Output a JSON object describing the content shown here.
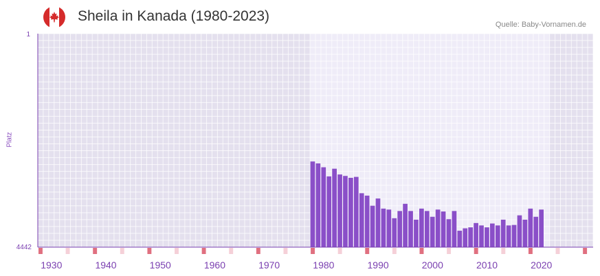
{
  "header": {
    "title": "Sheila in Kanada (1980-2023)",
    "source": "Quelle: Baby-Vornamen.de",
    "flag": "canada-flag-icon"
  },
  "colors": {
    "bar": "#8a4fc8",
    "axis_text": "#7a3fb0",
    "decade_marker": "#e07080",
    "halfdecade_marker": "#f5d0d8",
    "bg_inactive": "#e4e0ee",
    "bg_active": "#efecf8"
  },
  "chart_data": {
    "type": "bar",
    "title": "Sheila in Kanada (1980-2023)",
    "xlabel": "",
    "ylabel": "Platz",
    "y_inverted": true,
    "ylim": [
      1,
      4442
    ],
    "ytick_labels": [
      "1",
      "4442"
    ],
    "xlim": [
      1928,
      2029
    ],
    "xtick_labels": [
      "1930",
      "1940",
      "1950",
      "1960",
      "1970",
      "1980",
      "1990",
      "2000",
      "2010",
      "2020"
    ],
    "active_range": [
      1978,
      2021
    ],
    "categories": [
      1978,
      1979,
      1980,
      1981,
      1982,
      1983,
      1984,
      1985,
      1986,
      1987,
      1988,
      1989,
      1990,
      1991,
      1992,
      1993,
      1994,
      1995,
      1996,
      1997,
      1998,
      1999,
      2000,
      2001,
      2002,
      2003,
      2004,
      2005,
      2006,
      2007,
      2008,
      2009,
      2010,
      2011,
      2012,
      2013,
      2014,
      2015,
      2016,
      2017,
      2018,
      2019,
      2020,
      2021
    ],
    "values": [
      2660,
      2700,
      2780,
      2970,
      2810,
      2930,
      2960,
      3000,
      2980,
      3320,
      3370,
      3580,
      3430,
      3640,
      3660,
      3840,
      3690,
      3540,
      3690,
      3870,
      3640,
      3690,
      3810,
      3660,
      3700,
      3860,
      3690,
      4100,
      4050,
      4030,
      3940,
      3990,
      4030,
      3950,
      3990,
      3870,
      3990,
      3980,
      3780,
      3870,
      3640,
      3810,
      3660,
      4442
    ]
  }
}
